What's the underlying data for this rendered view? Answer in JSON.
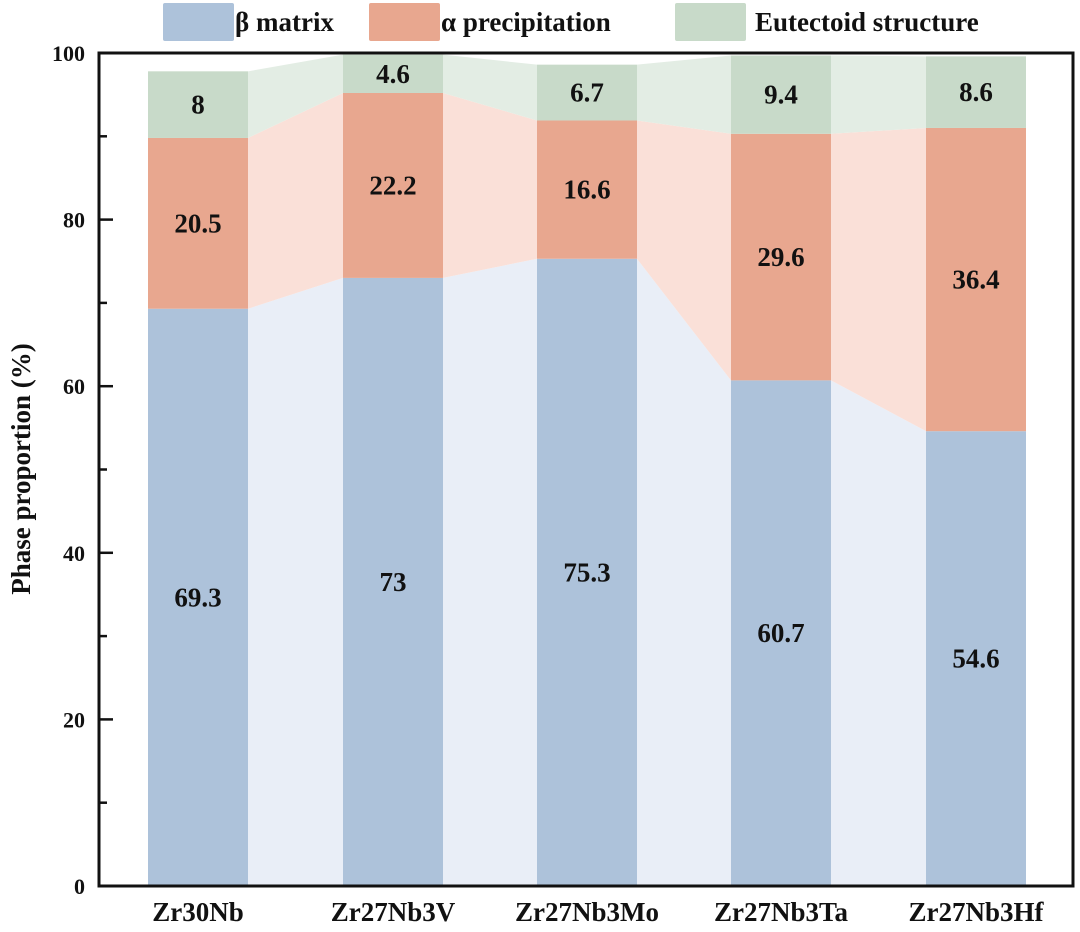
{
  "chart_data": {
    "type": "bar",
    "stacked": true,
    "title": "",
    "xlabel": "",
    "ylabel": "Phase proportion (%)",
    "ylim": [
      0,
      100
    ],
    "yticks": [
      0,
      20,
      40,
      60,
      80,
      100
    ],
    "yticks_minor": [
      10,
      30,
      50,
      70,
      90
    ],
    "grid": false,
    "legend_position": "top",
    "connectors": true,
    "categories": [
      "Zr30Nb",
      "Zr27Nb3V",
      "Zr27Nb3Mo",
      "Zr27Nb3Ta",
      "Zr27Nb3Hf"
    ],
    "series": [
      {
        "name": "β matrix",
        "color": "#adc2da",
        "connector_color": "#e9eef7",
        "values": [
          69.3,
          73,
          75.3,
          60.7,
          54.6
        ]
      },
      {
        "name": "α precipitation",
        "color": "#e8a78f",
        "connector_color": "#fae0d8",
        "values": [
          20.5,
          22.2,
          16.6,
          29.6,
          36.4
        ]
      },
      {
        "name": "Eutectoid structure",
        "color": "#c8dac9",
        "connector_color": "#e3ede4",
        "values": [
          8,
          4.6,
          6.7,
          9.4,
          8.6
        ]
      }
    ]
  }
}
